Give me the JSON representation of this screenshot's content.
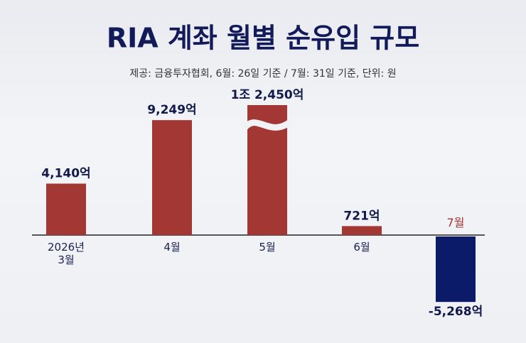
{
  "chart_data": {
    "type": "bar",
    "title": "RIA 계좌 월별 순유입 규모",
    "subtitle": "제공: 금융투자협회, 6월: 26일 기준 / 7월: 31일 기준, 단위: 원",
    "categories": [
      "2026년\n3월",
      "4월",
      "5월",
      "6월",
      "7월"
    ],
    "values": [
      4140,
      9249,
      12450,
      721,
      -5268
    ],
    "value_labels": [
      "4,140억",
      "9,249억",
      "1조 2,450억",
      "721억",
      "-5,268억"
    ],
    "color": "#a23733",
    "negative_color": "#0c1a6a"
  }
}
